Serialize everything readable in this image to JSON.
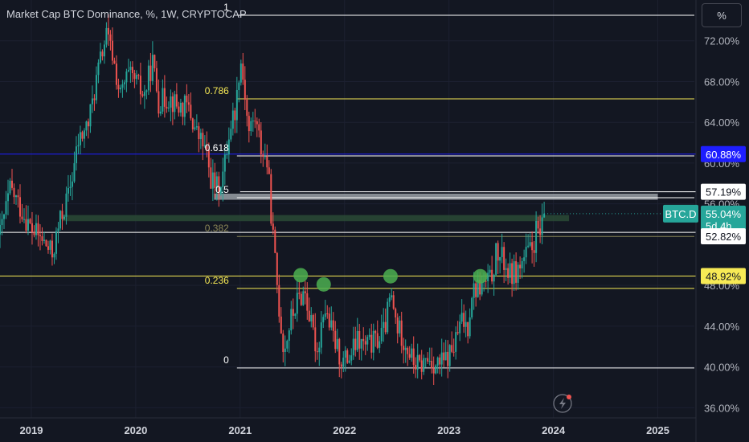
{
  "header": {
    "title": "Market Cap BTC Dominance, %, 1W, CRYPTOCAP",
    "unit_button": "%"
  },
  "colors": {
    "background": "#131722",
    "up": "#26a69a",
    "down": "#ef5350",
    "fib_white": "#ffffff",
    "fib_yellow": "#f7ea55",
    "fib_olive": "#8a8556",
    "blue": "#1e1eff",
    "zone": "#2a4a35",
    "marker": "#4caf50"
  },
  "chart_data": {
    "type": "candlestick",
    "symbol": "BTC.D",
    "timeframe": "1W",
    "ylim": [
      35,
      76
    ],
    "xlim": [
      2018.7,
      2025.35
    ],
    "y_ticks": [
      {
        "value": 72,
        "label": "72.00%"
      },
      {
        "value": 68,
        "label": "68.00%"
      },
      {
        "value": 64,
        "label": "64.00%"
      },
      {
        "value": 60,
        "label": "60.00%"
      },
      {
        "value": 56,
        "label": "56.00%"
      },
      {
        "value": 48,
        "label": "48.00%"
      },
      {
        "value": 44,
        "label": "44.00%"
      },
      {
        "value": 40,
        "label": "40.00%"
      },
      {
        "value": 36,
        "label": "36.00%"
      }
    ],
    "x_ticks": [
      {
        "value": 2019,
        "label": "2019"
      },
      {
        "value": 2020,
        "label": "2020"
      },
      {
        "value": 2021,
        "label": "2021"
      },
      {
        "value": 2022,
        "label": "2022"
      },
      {
        "value": 2023,
        "label": "2023"
      },
      {
        "value": 2024,
        "label": "2024"
      },
      {
        "value": 2025,
        "label": "2025"
      }
    ],
    "price_path": [
      [
        2018.7,
        53.0
      ],
      [
        2018.8,
        57.5
      ],
      [
        2018.9,
        55.5
      ],
      [
        2019.0,
        53.5
      ],
      [
        2019.1,
        52.5
      ],
      [
        2019.2,
        51.0
      ],
      [
        2019.28,
        54.5
      ],
      [
        2019.36,
        57.0
      ],
      [
        2019.45,
        62.0
      ],
      [
        2019.55,
        64.0
      ],
      [
        2019.62,
        68.0
      ],
      [
        2019.68,
        71.0
      ],
      [
        2019.72,
        72.5
      ],
      [
        2019.78,
        70.5
      ],
      [
        2019.85,
        66.5
      ],
      [
        2019.92,
        68.5
      ],
      [
        2020.0,
        68.0
      ],
      [
        2020.08,
        66.5
      ],
      [
        2020.16,
        70.0
      ],
      [
        2020.22,
        66.0
      ],
      [
        2020.32,
        66.5
      ],
      [
        2020.4,
        65.5
      ],
      [
        2020.5,
        65.5
      ],
      [
        2020.58,
        63.0
      ],
      [
        2020.66,
        61.5
      ],
      [
        2020.72,
        58.5
      ],
      [
        2020.78,
        57.5
      ],
      [
        2020.84,
        59.0
      ],
      [
        2020.9,
        63.5
      ],
      [
        2020.96,
        65.5
      ],
      [
        2021.0,
        70.5
      ],
      [
        2021.04,
        67.5
      ],
      [
        2021.08,
        63.0
      ],
      [
        2021.14,
        64.5
      ],
      [
        2021.2,
        61.5
      ],
      [
        2021.26,
        60.0
      ],
      [
        2021.32,
        52.0
      ],
      [
        2021.38,
        45.0
      ],
      [
        2021.42,
        41.5
      ],
      [
        2021.48,
        44.5
      ],
      [
        2021.55,
        46.5
      ],
      [
        2021.62,
        47.5
      ],
      [
        2021.68,
        44.0
      ],
      [
        2021.74,
        41.5
      ],
      [
        2021.8,
        46.0
      ],
      [
        2021.86,
        44.0
      ],
      [
        2021.92,
        42.0
      ],
      [
        2021.98,
        40.5
      ],
      [
        2022.05,
        41.0
      ],
      [
        2022.12,
        42.5
      ],
      [
        2022.2,
        42.0
      ],
      [
        2022.3,
        42.5
      ],
      [
        2022.38,
        43.5
      ],
      [
        2022.44,
        47.0
      ],
      [
        2022.5,
        44.0
      ],
      [
        2022.58,
        42.5
      ],
      [
        2022.66,
        40.5
      ],
      [
        2022.72,
        40.0
      ],
      [
        2022.8,
        40.8
      ],
      [
        2022.88,
        40.2
      ],
      [
        2022.96,
        40.5
      ],
      [
        2023.05,
        42.0
      ],
      [
        2023.12,
        44.5
      ],
      [
        2023.18,
        44.0
      ],
      [
        2023.22,
        47.5
      ],
      [
        2023.32,
        48.0
      ],
      [
        2023.4,
        48.5
      ],
      [
        2023.45,
        51.0
      ],
      [
        2023.52,
        50.5
      ],
      [
        2023.58,
        49.0
      ],
      [
        2023.66,
        49.5
      ],
      [
        2023.74,
        51.0
      ],
      [
        2023.8,
        51.5
      ],
      [
        2023.84,
        53.5
      ],
      [
        2023.88,
        52.8
      ],
      [
        2023.92,
        55.04
      ]
    ],
    "fib_levels": [
      {
        "ratio": "1",
        "value": 74.5,
        "color": "#ffffff"
      },
      {
        "ratio": "0.786",
        "value": 66.3,
        "color": "#f7ea55"
      },
      {
        "ratio": "0.618",
        "value": 60.7,
        "color": "#ffffff"
      },
      {
        "ratio": "0.5",
        "value": 56.6,
        "color": "#ffffff"
      },
      {
        "ratio": "0.382",
        "value": 52.8,
        "color": "#8a8556"
      },
      {
        "ratio": "0.236",
        "value": 47.7,
        "color": "#f7ea55"
      },
      {
        "ratio": "0",
        "value": 39.9,
        "color": "#ffffff"
      }
    ],
    "horizontal_lines": [
      {
        "value": 60.88,
        "color": "#1e1eff",
        "from": 2018.7
      },
      {
        "value": 53.2,
        "color": "#ffffff",
        "from": 2018.7
      },
      {
        "value": 48.92,
        "color": "#f7ea55",
        "from": 2018.7
      },
      {
        "value": 57.19,
        "color": "#ffffff",
        "from": 2021.0
      }
    ],
    "zones": [
      {
        "from": 2019.3,
        "to": 2024.15,
        "top": 54.9,
        "bottom": 54.3,
        "color": "#2a4a35"
      },
      {
        "from": 2020.75,
        "to": 2025.0,
        "top": 57.0,
        "bottom": 56.4,
        "color": "#9aa0a6"
      }
    ],
    "markers": [
      {
        "x": 2021.58,
        "y": 49.0
      },
      {
        "x": 2021.8,
        "y": 48.1
      },
      {
        "x": 2022.44,
        "y": 48.9
      },
      {
        "x": 2023.3,
        "y": 48.9
      }
    ],
    "price_badges": [
      {
        "value": 60.88,
        "label": "60.88%",
        "bg": "#1e1eff",
        "fg": "#ffffff"
      },
      {
        "value": 57.19,
        "label": "57.19%",
        "bg": "#ffffff",
        "fg": "#131722"
      },
      {
        "value": 55.04,
        "label": "55.04%",
        "sub": "5d 4h",
        "bg": "#26a69a",
        "fg": "#ffffff"
      },
      {
        "value": 52.82,
        "label": "52.82%",
        "bg": "#ffffff",
        "fg": "#131722"
      },
      {
        "value": 48.92,
        "label": "48.92%",
        "bg": "#f7ea55",
        "fg": "#131722"
      }
    ],
    "symbol_badge": "BTC.D",
    "last_price": 55.04
  }
}
